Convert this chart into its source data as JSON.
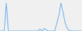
{
  "values": [
    0,
    0,
    0,
    900,
    0,
    0,
    0,
    0,
    0,
    0,
    0,
    0,
    0,
    0,
    0,
    0,
    0,
    0,
    0,
    60,
    0,
    80,
    40,
    0,
    0,
    0,
    0,
    250,
    500,
    900,
    600,
    250,
    80,
    20,
    0,
    0,
    0,
    0,
    0,
    0
  ],
  "line_color": "#5aaaee",
  "background_color": "#f0f0f0",
  "ylim_min": 0,
  "ylim_max": 1000
}
